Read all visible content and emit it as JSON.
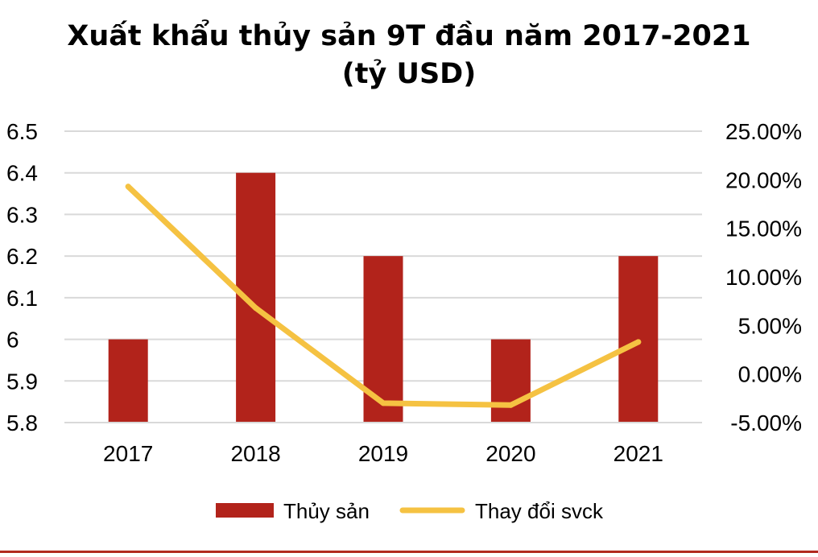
{
  "chart_data": {
    "type": "bar",
    "title_line1": "Xuất khẩu thủy sản 9T đầu năm 2017-2021",
    "title_line2": "(tỷ USD)",
    "categories": [
      "2017",
      "2018",
      "2019",
      "2020",
      "2021"
    ],
    "series": [
      {
        "name": "Thủy sản",
        "type": "bar",
        "axis": "left",
        "color": "#b2231b",
        "values": [
          6.0,
          6.4,
          6.2,
          6.0,
          6.2
        ]
      },
      {
        "name": "Thay đổi svck",
        "type": "line",
        "axis": "right",
        "color": "#f5c242",
        "values": [
          19.3,
          6.8,
          -3.0,
          -3.2,
          3.3
        ]
      }
    ],
    "y_left": {
      "min": 5.8,
      "max": 6.5,
      "ticks": [
        "6.5",
        "6.4",
        "6.3",
        "6.2",
        "6.1",
        "6",
        "5.9",
        "5.8"
      ],
      "tick_values": [
        6.5,
        6.4,
        6.3,
        6.2,
        6.1,
        6.0,
        5.9,
        5.8
      ]
    },
    "y_right": {
      "min": -5,
      "max": 25,
      "ticks": [
        "25.00%",
        "20.00%",
        "15.00%",
        "10.00%",
        "5.00%",
        "0.00%",
        "-5.00%"
      ],
      "tick_values": [
        25,
        20,
        15,
        10,
        5,
        0,
        -5
      ]
    },
    "grid": true,
    "legend_position": "bottom"
  }
}
